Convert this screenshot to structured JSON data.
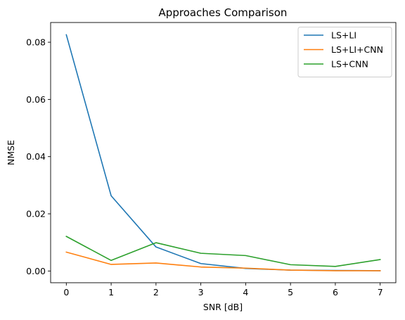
{
  "chart_data": {
    "type": "line",
    "title": "Approaches Comparison",
    "xlabel": "SNR [dB]",
    "ylabel": "NMSE",
    "x": [
      0,
      1,
      2,
      3,
      4,
      5,
      6,
      7
    ],
    "xlim": [
      -0.35,
      7.35
    ],
    "ylim": [
      -0.0041,
      0.0869
    ],
    "xticks": [
      0,
      1,
      2,
      3,
      4,
      5,
      6,
      7
    ],
    "yticks": [
      0.0,
      0.02,
      0.04,
      0.06,
      0.08
    ],
    "ytick_labels": [
      "0.00",
      "0.02",
      "0.04",
      "0.06",
      "0.08"
    ],
    "grid": false,
    "legend_position": "top-right",
    "series": [
      {
        "name": "LS+LI",
        "color": "#1f77b4",
        "values": [
          0.0826,
          0.0263,
          0.0084,
          0.0026,
          0.0009,
          0.0003,
          0.0002,
          0.0001
        ]
      },
      {
        "name": "LS+LI+CNN",
        "color": "#ff7f0e",
        "values": [
          0.0066,
          0.0023,
          0.0028,
          0.0014,
          0.001,
          0.0003,
          0.0001,
          0.0001
        ]
      },
      {
        "name": "LS+CNN",
        "color": "#2ca02c",
        "values": [
          0.0121,
          0.0037,
          0.0099,
          0.0062,
          0.0054,
          0.0022,
          0.0016,
          0.004
        ]
      }
    ]
  }
}
